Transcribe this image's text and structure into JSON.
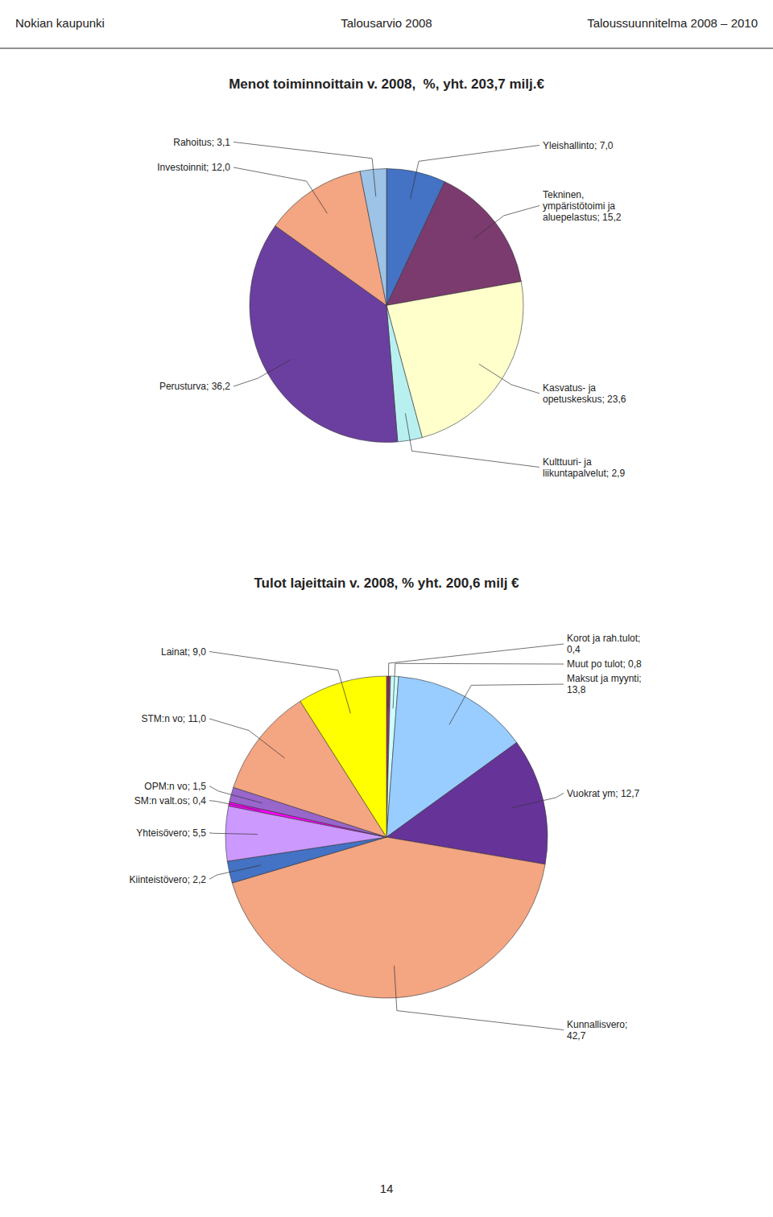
{
  "chart_data": [
    {
      "type": "pie",
      "title": "Menot toiminnoittain v. 2008,  %, yht. 203,7 milj.€",
      "annotations": [
        "Nokian kaupunki",
        "Talousarvio 2008",
        "Taloussuunnitelma 2008 – 2010"
      ],
      "categories": [
        "Yleishallinto; 7,0",
        "Tekninen,\nympäristötoimi ja\naluepelastus; 15,2",
        "Kasvatus- ja\nopetuskeskus; 23,6",
        "Kulttuuri- ja\nliikuntapalvelut; 2,9",
        "Perusturva; 36,2",
        "Investoinnit; 12,0",
        "Rahoitus; 3,1"
      ],
      "values": [
        7.0,
        15.2,
        23.6,
        2.9,
        36.2,
        12.0,
        3.1
      ],
      "colors": [
        "#4472C4",
        "#7B3B6E",
        "#FFFFCC",
        "#B8F0F0",
        "#6B3FA0",
        "#F4A582",
        "#9DC3E6"
      ]
    },
    {
      "type": "pie",
      "title": "Tulot lajeittain v. 2008, % yht. 200,6 milj €",
      "annotations": [
        "14"
      ],
      "categories": [
        "Korot ja rah.tulot;\n0,4",
        "Muut po tulot; 0,8",
        "Maksut ja myynti;\n13,8",
        "Vuokrat ym; 12,7",
        "Kunnallisvero;\n42,7",
        "Kiinteistövero; 2,2",
        "Yhteisövero; 5,5",
        "SM:n valt.os; 0,4",
        "OPM:n vo; 1,5",
        "STM:n vo; 11,0",
        "Lainat; 9,0"
      ],
      "values": [
        0.4,
        0.8,
        13.8,
        12.7,
        42.7,
        2.2,
        5.5,
        0.4,
        1.5,
        11.0,
        9.0
      ],
      "colors": [
        "#993366",
        "#CCFFFF",
        "#99CCFF",
        "#663399",
        "#F4A582",
        "#4472C4",
        "#CC99FF",
        "#FF00FF",
        "#9966CC",
        "#F4A582",
        "#FFFF00"
      ]
    }
  ]
}
